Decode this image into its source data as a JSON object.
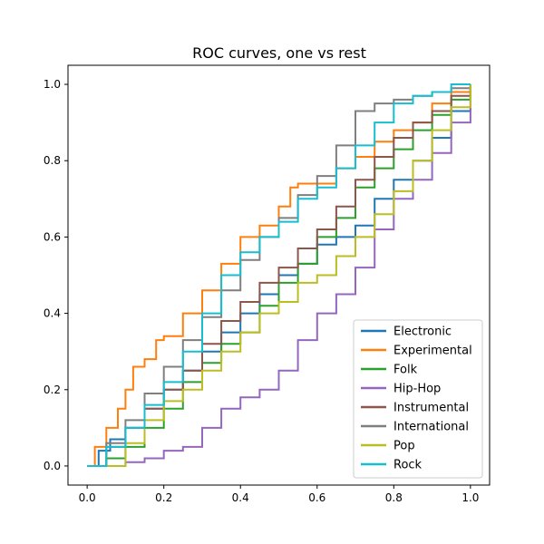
{
  "chart_data": {
    "type": "line",
    "title": "ROC curves, one vs rest",
    "xlabel": "",
    "ylabel": "",
    "xlim": [
      -0.05,
      1.05
    ],
    "ylim": [
      -0.05,
      1.05
    ],
    "xticks": [
      "0.0",
      "0.2",
      "0.4",
      "0.6",
      "0.8",
      "1.0"
    ],
    "yticks": [
      "0.0",
      "0.2",
      "0.4",
      "0.6",
      "0.8",
      "1.0"
    ],
    "grid": false,
    "legend_position": "lower-right",
    "series": [
      {
        "name": "Electronic",
        "color": "#1f77b4",
        "x": [
          0,
          0.03,
          0.06,
          0.1,
          0.15,
          0.2,
          0.25,
          0.3,
          0.35,
          0.4,
          0.45,
          0.5,
          0.55,
          0.6,
          0.65,
          0.7,
          0.75,
          0.8,
          0.85,
          0.9,
          0.95,
          1.0
        ],
        "y": [
          0,
          0.04,
          0.07,
          0.1,
          0.15,
          0.2,
          0.25,
          0.3,
          0.35,
          0.4,
          0.45,
          0.5,
          0.53,
          0.58,
          0.6,
          0.63,
          0.7,
          0.75,
          0.8,
          0.86,
          0.93,
          1.0
        ]
      },
      {
        "name": "Experimental",
        "color": "#ff7f0e",
        "x": [
          0,
          0.02,
          0.05,
          0.08,
          0.1,
          0.12,
          0.15,
          0.18,
          0.2,
          0.25,
          0.3,
          0.35,
          0.4,
          0.45,
          0.5,
          0.53,
          0.55,
          0.6,
          0.65,
          0.7,
          0.75,
          0.8,
          0.85,
          0.9,
          0.95,
          1.0
        ],
        "y": [
          0,
          0.05,
          0.1,
          0.15,
          0.2,
          0.26,
          0.28,
          0.33,
          0.34,
          0.4,
          0.46,
          0.53,
          0.6,
          0.63,
          0.68,
          0.73,
          0.74,
          0.74,
          0.78,
          0.81,
          0.85,
          0.88,
          0.9,
          0.95,
          0.98,
          1.0
        ]
      },
      {
        "name": "Folk",
        "color": "#2ca02c",
        "x": [
          0,
          0.05,
          0.1,
          0.15,
          0.2,
          0.25,
          0.3,
          0.35,
          0.4,
          0.45,
          0.5,
          0.55,
          0.6,
          0.65,
          0.7,
          0.75,
          0.8,
          0.85,
          0.9,
          0.95,
          1.0
        ],
        "y": [
          0,
          0.02,
          0.05,
          0.1,
          0.15,
          0.22,
          0.27,
          0.32,
          0.35,
          0.42,
          0.48,
          0.53,
          0.6,
          0.65,
          0.73,
          0.78,
          0.83,
          0.88,
          0.92,
          0.96,
          1.0
        ]
      },
      {
        "name": "Hip-Hop",
        "color": "#9467bd",
        "x": [
          0,
          0.05,
          0.1,
          0.15,
          0.2,
          0.25,
          0.3,
          0.35,
          0.4,
          0.45,
          0.5,
          0.55,
          0.6,
          0.65,
          0.7,
          0.75,
          0.8,
          0.85,
          0.9,
          0.95,
          1.0
        ],
        "y": [
          0,
          0.0,
          0.01,
          0.02,
          0.04,
          0.05,
          0.1,
          0.15,
          0.18,
          0.2,
          0.25,
          0.33,
          0.4,
          0.45,
          0.52,
          0.62,
          0.7,
          0.75,
          0.82,
          0.9,
          1.0
        ]
      },
      {
        "name": "Instrumental",
        "color": "#8c564b",
        "x": [
          0,
          0.05,
          0.1,
          0.15,
          0.2,
          0.25,
          0.3,
          0.35,
          0.4,
          0.45,
          0.5,
          0.55,
          0.6,
          0.65,
          0.7,
          0.75,
          0.8,
          0.85,
          0.9,
          0.95,
          1.0
        ],
        "y": [
          0,
          0.05,
          0.1,
          0.15,
          0.2,
          0.25,
          0.32,
          0.38,
          0.43,
          0.48,
          0.52,
          0.57,
          0.62,
          0.68,
          0.75,
          0.81,
          0.86,
          0.9,
          0.93,
          0.97,
          1.0
        ]
      },
      {
        "name": "International",
        "color": "#7f7f7f",
        "x": [
          0,
          0.05,
          0.1,
          0.15,
          0.2,
          0.25,
          0.3,
          0.35,
          0.4,
          0.45,
          0.5,
          0.55,
          0.6,
          0.65,
          0.7,
          0.75,
          0.8,
          0.85,
          0.9,
          0.95,
          1.0
        ],
        "y": [
          0,
          0.06,
          0.12,
          0.19,
          0.26,
          0.33,
          0.39,
          0.46,
          0.54,
          0.6,
          0.65,
          0.71,
          0.76,
          0.84,
          0.93,
          0.95,
          0.96,
          0.97,
          0.98,
          0.99,
          1.0
        ]
      },
      {
        "name": "Pop",
        "color": "#bcbd22",
        "x": [
          0,
          0.05,
          0.1,
          0.15,
          0.2,
          0.25,
          0.3,
          0.35,
          0.4,
          0.45,
          0.5,
          0.55,
          0.6,
          0.65,
          0.7,
          0.75,
          0.8,
          0.85,
          0.9,
          0.95,
          1.0
        ],
        "y": [
          0,
          0.0,
          0.06,
          0.12,
          0.17,
          0.2,
          0.25,
          0.3,
          0.35,
          0.4,
          0.43,
          0.48,
          0.5,
          0.55,
          0.6,
          0.66,
          0.72,
          0.8,
          0.88,
          0.94,
          1.0
        ]
      },
      {
        "name": "Rock",
        "color": "#17becf",
        "x": [
          0,
          0.05,
          0.1,
          0.15,
          0.2,
          0.25,
          0.3,
          0.35,
          0.4,
          0.45,
          0.5,
          0.55,
          0.6,
          0.65,
          0.7,
          0.75,
          0.8,
          0.85,
          0.9,
          0.95,
          1.0
        ],
        "y": [
          0,
          0.05,
          0.1,
          0.16,
          0.22,
          0.3,
          0.4,
          0.5,
          0.56,
          0.6,
          0.64,
          0.7,
          0.73,
          0.78,
          0.84,
          0.9,
          0.95,
          0.97,
          0.98,
          1.0,
          1.0
        ]
      }
    ]
  }
}
